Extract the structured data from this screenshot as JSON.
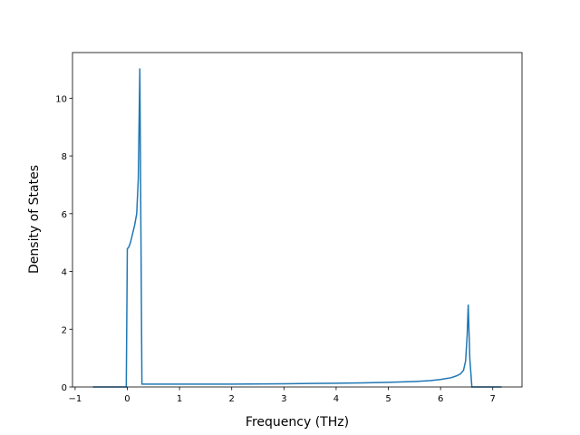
{
  "chart_data": {
    "type": "line",
    "xlabel": "Frequency (THz)",
    "ylabel": "Density of States",
    "x": [
      -0.66,
      -0.3,
      -0.02,
      0.0,
      0.03,
      0.06,
      0.1,
      0.14,
      0.18,
      0.21,
      0.24,
      0.28,
      1.0,
      2.0,
      3.0,
      3.5,
      4.0,
      4.5,
      5.0,
      5.5,
      5.8,
      6.0,
      6.1,
      6.2,
      6.3,
      6.38,
      6.44,
      6.48,
      6.51,
      6.53,
      6.56,
      6.6,
      7.0,
      7.17
    ],
    "series": [
      {
        "color": "#1f77b4",
        "values": [
          0,
          0,
          0,
          4.78,
          4.85,
          5.0,
          5.3,
          5.6,
          6.0,
          7.2,
          11.03,
          0.1,
          0.1,
          0.1,
          0.11,
          0.12,
          0.13,
          0.14,
          0.16,
          0.19,
          0.22,
          0.26,
          0.29,
          0.32,
          0.38,
          0.45,
          0.58,
          0.9,
          1.8,
          2.85,
          1.0,
          0,
          0,
          0
        ]
      }
    ],
    "xlim": [
      -1.05,
      7.56
    ],
    "ylim": [
      0,
      11.58
    ],
    "xticks": [
      {
        "value": -1,
        "label": "−1"
      },
      0,
      1,
      2,
      3,
      4,
      5,
      6,
      7
    ],
    "yticks": [
      0,
      2,
      4,
      6,
      8,
      10
    ]
  }
}
